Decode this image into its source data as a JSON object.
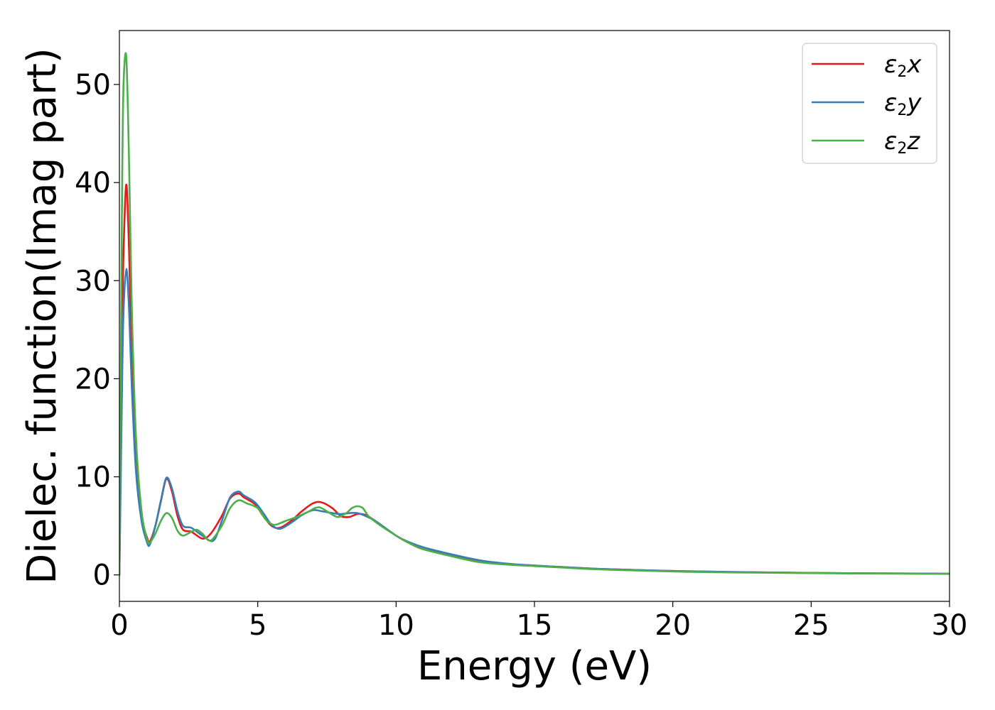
{
  "chart_data": {
    "type": "line",
    "title": "",
    "xlabel": "Energy (eV)",
    "ylabel": "Dielec. function(Imag part)",
    "xlim": [
      0,
      30
    ],
    "ylim": [
      -2.7,
      55.5
    ],
    "xticks": [
      0,
      5,
      10,
      15,
      20,
      25,
      30
    ],
    "yticks": [
      0,
      10,
      20,
      30,
      40,
      50
    ],
    "grid": false,
    "legend_position": "top-right",
    "series": [
      {
        "name": "ε2x",
        "legend": {
          "base": "ε",
          "sub": "2",
          "suffix": "x"
        },
        "color": "#e41a1c",
        "x": [
          0,
          0.05,
          0.1,
          0.15,
          0.25,
          0.35,
          0.45,
          0.6,
          0.8,
          1.0,
          1.1,
          1.3,
          1.5,
          1.7,
          1.9,
          2.1,
          2.3,
          2.6,
          3.0,
          3.3,
          3.7,
          4.0,
          4.3,
          4.5,
          4.9,
          5.2,
          5.5,
          5.8,
          6.2,
          6.6,
          7.0,
          7.3,
          7.7,
          8.0,
          8.3,
          8.6,
          8.9,
          9.3,
          10,
          10.5,
          11,
          12,
          13,
          14,
          15,
          16,
          17,
          18,
          20,
          22,
          25,
          28,
          30
        ],
        "values": [
          0,
          12,
          25,
          33,
          39.8,
          33,
          22,
          12,
          6,
          3.8,
          3.4,
          5,
          7.5,
          9.8,
          8.5,
          6,
          4.6,
          4.4,
          3.7,
          4.2,
          6,
          7.8,
          8.3,
          7.9,
          7.2,
          6,
          5,
          4.8,
          5.5,
          6.5,
          7.3,
          7.4,
          6.8,
          6,
          5.9,
          6.2,
          6.1,
          5.4,
          4,
          3.2,
          2.6,
          2,
          1.4,
          1.1,
          0.95,
          0.8,
          0.65,
          0.55,
          0.4,
          0.3,
          0.2,
          0.15,
          0.12
        ]
      },
      {
        "name": "ε2y",
        "legend": {
          "base": "ε",
          "sub": "2",
          "suffix": "y"
        },
        "color": "#377eb8",
        "x": [
          0,
          0.05,
          0.1,
          0.15,
          0.25,
          0.35,
          0.45,
          0.6,
          0.8,
          1.0,
          1.1,
          1.3,
          1.5,
          1.7,
          1.9,
          2.1,
          2.3,
          2.6,
          3.0,
          3.4,
          3.7,
          4.0,
          4.3,
          4.5,
          4.9,
          5.2,
          5.5,
          5.8,
          6.2,
          6.6,
          7.0,
          7.3,
          7.7,
          8.0,
          8.3,
          8.6,
          8.9,
          9.3,
          10,
          10.5,
          11,
          12,
          13,
          14,
          15,
          16,
          17,
          18,
          20,
          22,
          25,
          28,
          30
        ],
        "values": [
          0,
          10,
          20,
          27,
          31.2,
          27,
          19,
          10.5,
          5.5,
          3.3,
          3.1,
          5,
          7.6,
          9.9,
          8.8,
          6.5,
          5,
          4.8,
          4,
          3.5,
          5.5,
          7.9,
          8.5,
          8.1,
          7.4,
          6.3,
          5.1,
          4.7,
          5.3,
          6.1,
          6.6,
          6.5,
          6.3,
          6.2,
          6.3,
          6.3,
          6,
          5.4,
          4,
          3.3,
          2.8,
          2.1,
          1.5,
          1.15,
          0.95,
          0.8,
          0.65,
          0.55,
          0.4,
          0.3,
          0.2,
          0.15,
          0.12
        ]
      },
      {
        "name": "ε2z",
        "legend": {
          "base": "ε",
          "sub": "2",
          "suffix": "z"
        },
        "color": "#4daf4a",
        "x": [
          0,
          0.05,
          0.1,
          0.15,
          0.25,
          0.35,
          0.45,
          0.6,
          0.8,
          1.0,
          1.1,
          1.3,
          1.5,
          1.7,
          1.9,
          2.1,
          2.3,
          2.6,
          2.8,
          3.0,
          3.3,
          3.7,
          4.0,
          4.3,
          4.6,
          5.0,
          5.3,
          5.6,
          6.0,
          6.4,
          6.8,
          7.2,
          7.6,
          7.9,
          8.2,
          8.4,
          8.6,
          8.8,
          9.0,
          9.4,
          10,
          10.5,
          11,
          12,
          13,
          14,
          15,
          16,
          17,
          18,
          20,
          22,
          25,
          28,
          30
        ],
        "values": [
          0,
          20,
          40,
          50,
          52.8,
          42,
          27,
          14,
          6.5,
          3.6,
          3.3,
          4.2,
          5.5,
          6.3,
          5.8,
          4.5,
          4,
          4.4,
          4.6,
          4.2,
          3.5,
          5,
          6.8,
          7.6,
          7.3,
          6.8,
          5.6,
          5.1,
          5.5,
          5.9,
          6.4,
          6.9,
          6.3,
          5.9,
          6.3,
          6.8,
          7,
          6.8,
          6,
          5.1,
          4,
          3.2,
          2.6,
          1.9,
          1.3,
          1.05,
          0.9,
          0.75,
          0.6,
          0.5,
          0.35,
          0.25,
          0.18,
          0.13,
          0.1
        ]
      }
    ]
  }
}
